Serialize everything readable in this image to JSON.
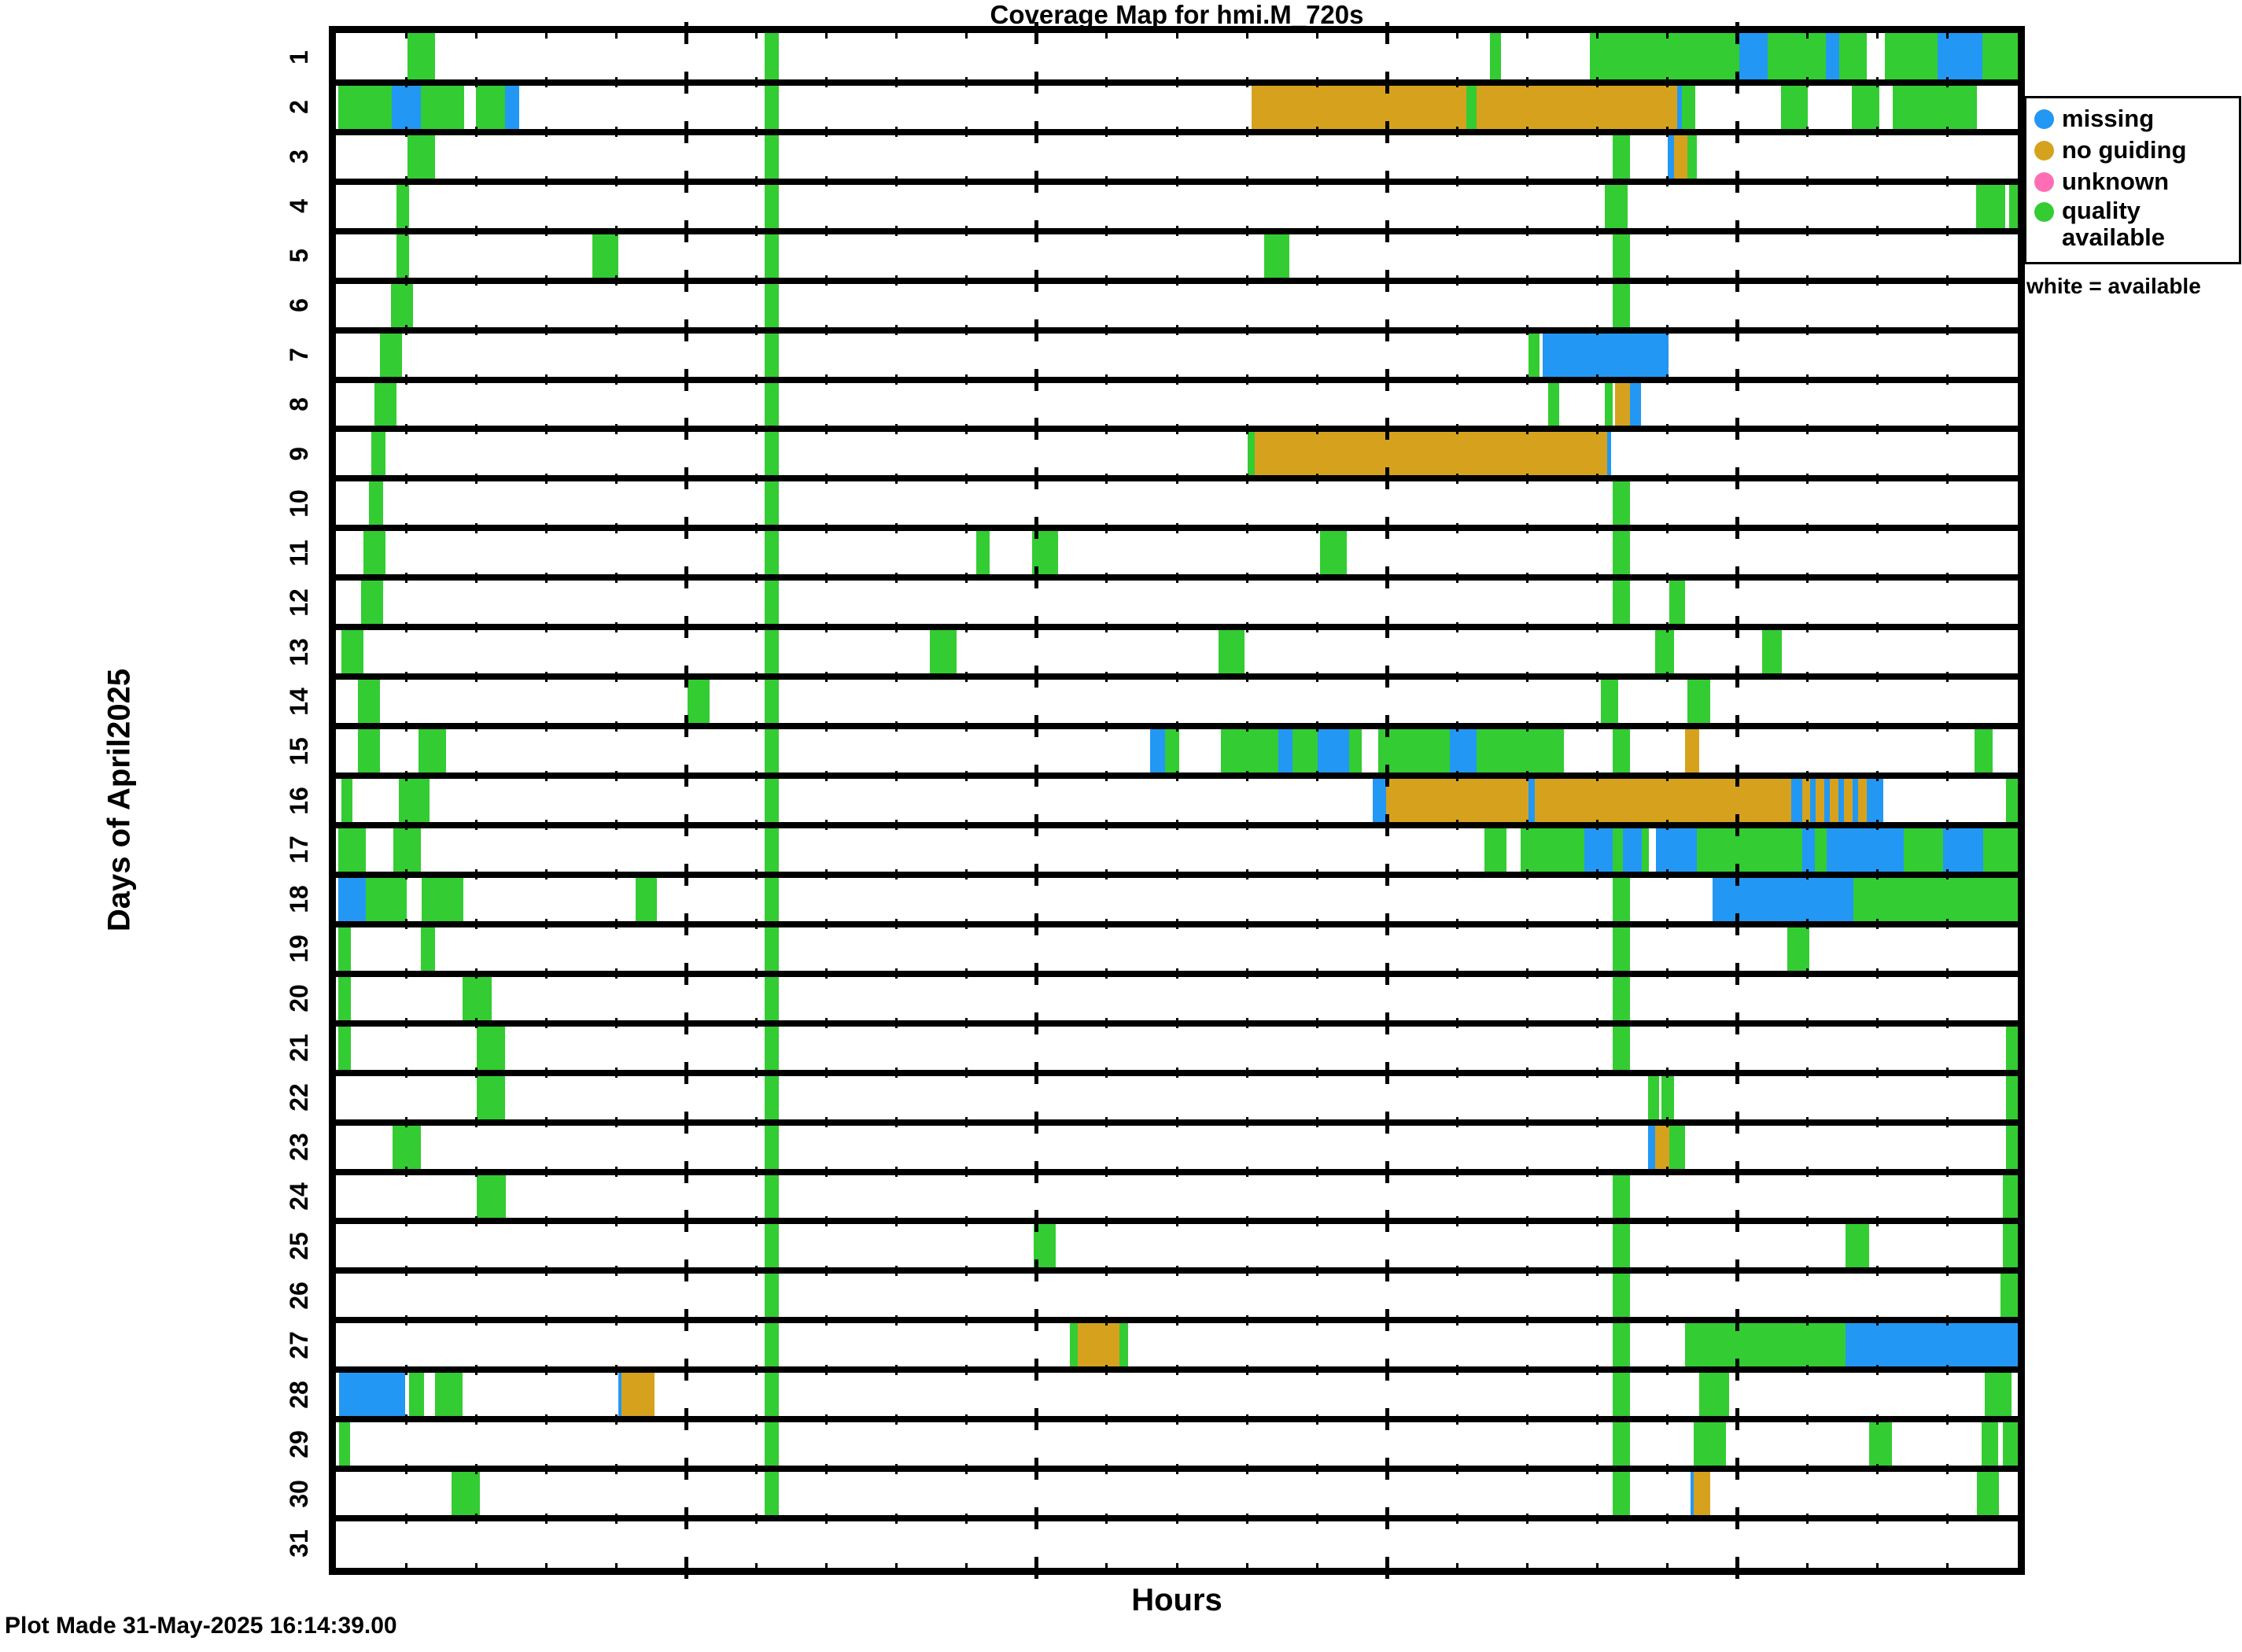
{
  "title": "Coverage Map for hmi.M_720s",
  "x_axis_label": "Hours",
  "y_axis_label": "Days of April2025",
  "footer": "Plot Made 31-May-2025 16:14:39.00",
  "legend": {
    "note": "white = available",
    "items": [
      {
        "key": "b",
        "label": "missing",
        "color": "#2297F4"
      },
      {
        "key": "o",
        "label": "no guiding",
        "color": "#D6A21E"
      },
      {
        "key": "p",
        "label": "unknown",
        "color": "#FF6EB4"
      },
      {
        "key": "g",
        "label": "quality available",
        "color": "#33CC33"
      }
    ]
  },
  "chart_data": {
    "type": "heatmap",
    "title": "Coverage Map for hmi.M_720s",
    "xlabel": "Hours",
    "ylabel": "Days of April2025",
    "x_range": [
      0,
      24
    ],
    "y_days": 31,
    "grid": "row-lines",
    "tick_minor_step_hours": 1,
    "tick_major_hours": [
      5,
      10,
      15,
      20
    ],
    "legend_position": "right",
    "status_colors": {
      "g": "#33CC33",
      "b": "#2297F4",
      "o": "#D6A21E",
      "p": "#FF6EB4"
    },
    "status_names": {
      "g": "quality available",
      "b": "missing",
      "o": "no guiding",
      "p": "unknown",
      "white": "available"
    },
    "days": [
      {
        "day": 1,
        "segments": [
          [
            "g",
            1.02,
            1.41
          ],
          [
            "g",
            6.12,
            6.32
          ],
          [
            "g",
            16.47,
            16.63
          ],
          [
            "g",
            17.89,
            20.03
          ],
          [
            "b",
            20.03,
            20.43
          ],
          [
            "g",
            20.43,
            21.26
          ],
          [
            "b",
            21.26,
            21.45
          ],
          [
            "g",
            21.45,
            21.84
          ],
          [
            "g",
            22.1,
            22.86
          ],
          [
            "b",
            22.86,
            23.49
          ],
          [
            "g",
            23.49,
            24
          ]
        ]
      },
      {
        "day": 2,
        "segments": [
          [
            "g",
            0.03,
            0.8
          ],
          [
            "b",
            0.8,
            1.21
          ],
          [
            "g",
            1.21,
            1.83
          ],
          [
            "g",
            2.0,
            2.41
          ],
          [
            "b",
            2.41,
            2.62
          ],
          [
            "g",
            6.12,
            6.32
          ],
          [
            "o",
            13.07,
            16.13
          ],
          [
            "g",
            16.13,
            16.28
          ],
          [
            "o",
            16.28,
            19.14
          ],
          [
            "b",
            19.14,
            19.21
          ],
          [
            "g",
            19.21,
            19.4
          ],
          [
            "g",
            20.62,
            21.0
          ],
          [
            "g",
            21.63,
            22.02
          ],
          [
            "g",
            22.21,
            23.42
          ]
        ]
      },
      {
        "day": 3,
        "segments": [
          [
            "g",
            1.02,
            1.41
          ],
          [
            "g",
            6.12,
            6.32
          ],
          [
            "g",
            18.22,
            18.47
          ],
          [
            "b",
            19.0,
            19.09
          ],
          [
            "o",
            19.09,
            19.29
          ],
          [
            "g",
            19.29,
            19.42
          ]
        ]
      },
      {
        "day": 4,
        "segments": [
          [
            "g",
            0.86,
            1.04
          ],
          [
            "g",
            6.12,
            6.32
          ],
          [
            "g",
            18.11,
            18.43
          ],
          [
            "g",
            23.4,
            23.82
          ],
          [
            "g",
            23.88,
            24
          ]
        ]
      },
      {
        "day": 5,
        "segments": [
          [
            "g",
            0.86,
            1.04
          ],
          [
            "g",
            3.66,
            4.03
          ],
          [
            "g",
            6.12,
            6.32
          ],
          [
            "g",
            13.25,
            13.6
          ],
          [
            "g",
            18.22,
            18.47
          ]
        ]
      },
      {
        "day": 6,
        "segments": [
          [
            "g",
            0.79,
            1.1
          ],
          [
            "g",
            6.12,
            6.32
          ],
          [
            "g",
            18.22,
            18.47
          ]
        ]
      },
      {
        "day": 7,
        "segments": [
          [
            "g",
            0.63,
            0.94
          ],
          [
            "g",
            6.12,
            6.32
          ],
          [
            "g",
            17.02,
            17.18
          ],
          [
            "b",
            17.22,
            19.02
          ]
        ]
      },
      {
        "day": 8,
        "segments": [
          [
            "g",
            0.55,
            0.86
          ],
          [
            "g",
            6.12,
            6.32
          ],
          [
            "g",
            17.3,
            17.46
          ],
          [
            "g",
            18.11,
            18.22
          ],
          [
            "o",
            18.25,
            18.47
          ],
          [
            "b",
            18.47,
            18.62
          ]
        ]
      },
      {
        "day": 9,
        "segments": [
          [
            "g",
            0.51,
            0.71
          ],
          [
            "g",
            6.12,
            6.32
          ],
          [
            "g",
            13.01,
            13.11
          ],
          [
            "o",
            13.11,
            18.14
          ],
          [
            "b",
            18.14,
            18.2
          ]
        ]
      },
      {
        "day": 10,
        "segments": [
          [
            "g",
            0.47,
            0.67
          ],
          [
            "g",
            6.12,
            6.32
          ],
          [
            "g",
            18.22,
            18.47
          ]
        ]
      },
      {
        "day": 11,
        "segments": [
          [
            "g",
            0.39,
            0.71
          ],
          [
            "g",
            6.12,
            6.32
          ],
          [
            "g",
            9.14,
            9.33
          ],
          [
            "g",
            9.93,
            10.31
          ],
          [
            "g",
            14.04,
            14.43
          ],
          [
            "g",
            18.22,
            18.47
          ]
        ]
      },
      {
        "day": 12,
        "segments": [
          [
            "g",
            0.36,
            0.67
          ],
          [
            "g",
            6.12,
            6.32
          ],
          [
            "g",
            18.22,
            18.47
          ],
          [
            "g",
            19.03,
            19.25
          ]
        ]
      },
      {
        "day": 13,
        "segments": [
          [
            "g",
            0.08,
            0.39
          ],
          [
            "g",
            6.12,
            6.32
          ],
          [
            "g",
            8.47,
            8.86
          ],
          [
            "g",
            12.6,
            12.97
          ],
          [
            "g",
            18.82,
            19.09
          ],
          [
            "g",
            20.35,
            20.63
          ]
        ]
      },
      {
        "day": 14,
        "segments": [
          [
            "g",
            0.31,
            0.63
          ],
          [
            "g",
            5.02,
            5.33
          ],
          [
            "g",
            6.12,
            6.32
          ],
          [
            "g",
            18.05,
            18.3
          ],
          [
            "g",
            19.29,
            19.61
          ]
        ]
      },
      {
        "day": 15,
        "segments": [
          [
            "g",
            0.31,
            0.63
          ],
          [
            "g",
            1.18,
            1.57
          ],
          [
            "g",
            6.12,
            6.32
          ],
          [
            "b",
            11.62,
            11.83
          ],
          [
            "g",
            11.83,
            12.03
          ],
          [
            "g",
            12.63,
            13.45
          ],
          [
            "b",
            13.45,
            13.65
          ],
          [
            "g",
            13.65,
            14.01
          ],
          [
            "b",
            14.01,
            14.46
          ],
          [
            "g",
            14.46,
            14.64
          ],
          [
            "g",
            14.87,
            15.9
          ],
          [
            "b",
            15.9,
            16.28
          ],
          [
            "g",
            16.28,
            17.52
          ],
          [
            "g",
            18.22,
            18.47
          ],
          [
            "o",
            19.25,
            19.45
          ],
          [
            "g",
            23.38,
            23.64
          ]
        ]
      },
      {
        "day": 16,
        "segments": [
          [
            "g",
            0.08,
            0.24
          ],
          [
            "g",
            0.9,
            1.34
          ],
          [
            "g",
            6.12,
            6.32
          ],
          [
            "b",
            14.8,
            14.99
          ],
          [
            "o",
            14.99,
            17.02
          ],
          [
            "b",
            17.02,
            17.11
          ],
          [
            "o",
            17.11,
            20.77
          ],
          [
            "b",
            20.77,
            20.92
          ],
          [
            "o",
            20.92,
            21.04
          ],
          [
            "b",
            21.04,
            21.12
          ],
          [
            "o",
            21.12,
            21.24
          ],
          [
            "b",
            21.24,
            21.32
          ],
          [
            "o",
            21.32,
            21.44
          ],
          [
            "b",
            21.44,
            21.52
          ],
          [
            "o",
            21.52,
            21.64
          ],
          [
            "b",
            21.64,
            21.72
          ],
          [
            "o",
            21.72,
            21.84
          ],
          [
            "b",
            21.84,
            22.08
          ],
          [
            "g",
            23.83,
            24
          ]
        ]
      },
      {
        "day": 17,
        "segments": [
          [
            "g",
            0.03,
            0.43
          ],
          [
            "g",
            0.82,
            1.21
          ],
          [
            "g",
            6.12,
            6.32
          ],
          [
            "g",
            16.39,
            16.7
          ],
          [
            "g",
            16.91,
            17.81
          ],
          [
            "b",
            17.81,
            18.22
          ],
          [
            "g",
            18.22,
            18.37
          ],
          [
            "b",
            18.37,
            18.63
          ],
          [
            "g",
            18.63,
            18.74
          ],
          [
            "b",
            18.84,
            19.42
          ],
          [
            "g",
            19.42,
            20.92
          ],
          [
            "b",
            20.92,
            21.1
          ],
          [
            "g",
            21.1,
            21.27
          ],
          [
            "b",
            21.27,
            22.37
          ],
          [
            "g",
            22.37,
            22.93
          ],
          [
            "b",
            22.93,
            23.51
          ],
          [
            "g",
            23.51,
            24
          ]
        ]
      },
      {
        "day": 18,
        "segments": [
          [
            "b",
            0.03,
            0.43
          ],
          [
            "g",
            0.43,
            1.01
          ],
          [
            "g",
            1.22,
            1.82
          ],
          [
            "g",
            4.28,
            4.58
          ],
          [
            "g",
            6.12,
            6.32
          ],
          [
            "g",
            18.22,
            18.47
          ],
          [
            "b",
            19.65,
            21.65
          ],
          [
            "g",
            21.65,
            24
          ]
        ]
      },
      {
        "day": 19,
        "segments": [
          [
            "g",
            0.03,
            0.21
          ],
          [
            "g",
            1.21,
            1.41
          ],
          [
            "g",
            6.12,
            6.32
          ],
          [
            "g",
            18.22,
            18.47
          ],
          [
            "g",
            20.71,
            21.02
          ]
        ]
      },
      {
        "day": 20,
        "segments": [
          [
            "g",
            0.03,
            0.21
          ],
          [
            "g",
            1.81,
            2.22
          ],
          [
            "g",
            6.12,
            6.32
          ],
          [
            "g",
            18.22,
            18.47
          ]
        ]
      },
      {
        "day": 21,
        "segments": [
          [
            "g",
            0.03,
            0.21
          ],
          [
            "g",
            2.01,
            2.41
          ],
          [
            "g",
            6.12,
            6.32
          ],
          [
            "g",
            18.22,
            18.47
          ],
          [
            "g",
            23.83,
            24
          ]
        ]
      },
      {
        "day": 22,
        "segments": [
          [
            "g",
            2.01,
            2.41
          ],
          [
            "g",
            6.12,
            6.32
          ],
          [
            "g",
            18.72,
            18.88
          ],
          [
            "g",
            18.92,
            19.09
          ],
          [
            "g",
            23.83,
            24
          ]
        ]
      },
      {
        "day": 23,
        "segments": [
          [
            "g",
            0.81,
            1.21
          ],
          [
            "g",
            6.12,
            6.32
          ],
          [
            "b",
            18.72,
            18.83
          ],
          [
            "o",
            18.83,
            19.03
          ],
          [
            "g",
            19.03,
            19.25
          ],
          [
            "g",
            23.83,
            24
          ]
        ]
      },
      {
        "day": 24,
        "segments": [
          [
            "g",
            2.01,
            2.43
          ],
          [
            "g",
            6.12,
            6.32
          ],
          [
            "g",
            18.22,
            18.47
          ],
          [
            "g",
            23.79,
            24
          ]
        ]
      },
      {
        "day": 25,
        "segments": [
          [
            "g",
            6.12,
            6.32
          ],
          [
            "g",
            9.96,
            10.27
          ],
          [
            "g",
            18.22,
            18.47
          ],
          [
            "g",
            21.54,
            21.88
          ],
          [
            "g",
            23.79,
            24
          ]
        ]
      },
      {
        "day": 26,
        "segments": [
          [
            "g",
            6.12,
            6.32
          ],
          [
            "g",
            18.22,
            18.47
          ],
          [
            "g",
            23.75,
            24
          ]
        ]
      },
      {
        "day": 27,
        "segments": [
          [
            "g",
            6.12,
            6.32
          ],
          [
            "g",
            10.47,
            10.59
          ],
          [
            "o",
            10.59,
            11.18
          ],
          [
            "g",
            11.18,
            11.3
          ],
          [
            "g",
            18.22,
            18.47
          ],
          [
            "g",
            19.25,
            21.54
          ],
          [
            "b",
            21.54,
            24
          ]
        ]
      },
      {
        "day": 28,
        "segments": [
          [
            "b",
            0.04,
            0.99
          ],
          [
            "g",
            1.04,
            1.26
          ],
          [
            "g",
            1.41,
            1.81
          ],
          [
            "b",
            4.03,
            4.08
          ],
          [
            "o",
            4.08,
            4.55
          ],
          [
            "g",
            6.12,
            6.32
          ],
          [
            "g",
            18.22,
            18.47
          ],
          [
            "g",
            19.45,
            19.88
          ],
          [
            "g",
            23.53,
            23.91
          ]
        ]
      },
      {
        "day": 29,
        "segments": [
          [
            "g",
            0.04,
            0.2
          ],
          [
            "g",
            6.12,
            6.32
          ],
          [
            "g",
            18.22,
            18.47
          ],
          [
            "g",
            19.37,
            19.84
          ],
          [
            "g",
            21.88,
            22.2
          ],
          [
            "g",
            23.48,
            23.72
          ],
          [
            "g",
            23.79,
            24
          ]
        ]
      },
      {
        "day": 30,
        "segments": [
          [
            "g",
            1.65,
            2.05
          ],
          [
            "g",
            6.12,
            6.32
          ],
          [
            "g",
            18.22,
            18.47
          ],
          [
            "b",
            19.33,
            19.37
          ],
          [
            "o",
            19.37,
            19.61
          ],
          [
            "g",
            23.42,
            23.73
          ]
        ]
      },
      {
        "day": 31,
        "segments": []
      }
    ]
  }
}
